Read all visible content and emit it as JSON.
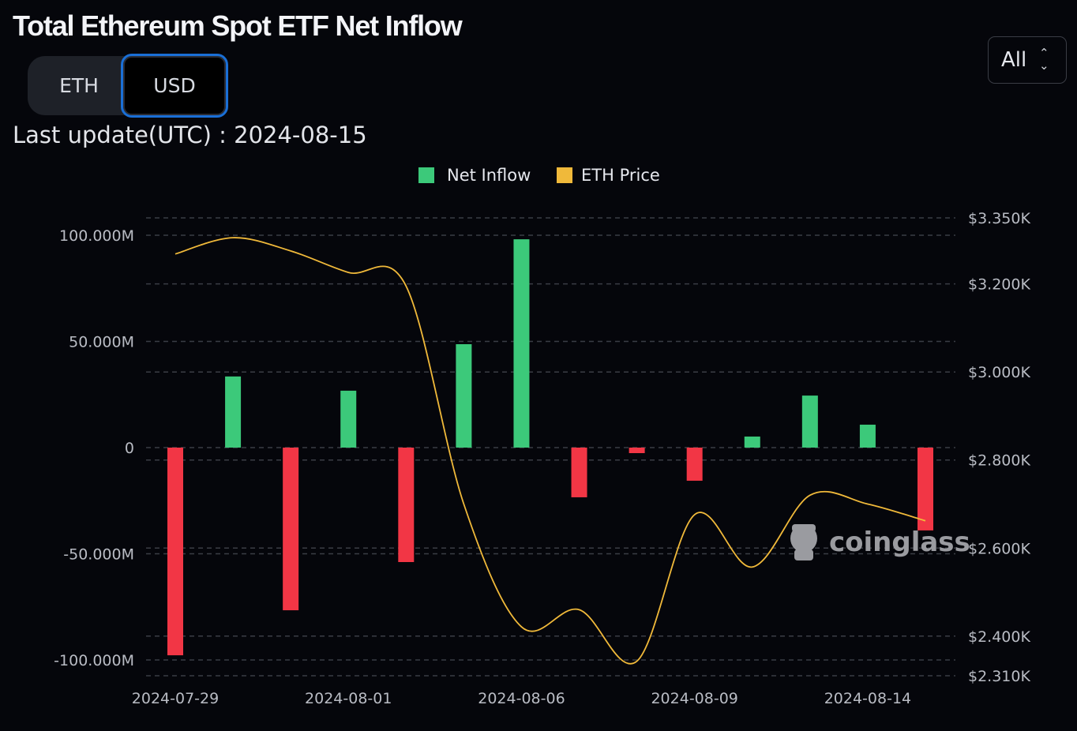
{
  "header": {
    "title": "Total Ethereum Spot ETF Net Inflow",
    "last_update": "Last update(UTC) : 2024-08-15"
  },
  "unit_toggle": {
    "options": [
      "ETH",
      "USD"
    ],
    "selected": "USD"
  },
  "range_select": {
    "value": "All",
    "icon": "chevron-up-down-icon"
  },
  "watermark": "coinglass",
  "chart_data": {
    "type": "bar+line",
    "title": "Total Ethereum Spot ETF Net Inflow",
    "legend": {
      "placement": "top-center",
      "entries": [
        "Net Inflow",
        "ETH Price"
      ]
    },
    "categories": [
      "2024-07-29",
      "2024-07-30",
      "2024-07-31",
      "2024-08-01",
      "2024-08-02",
      "2024-08-05",
      "2024-08-06",
      "2024-08-07",
      "2024-08-08",
      "2024-08-09",
      "2024-08-12",
      "2024-08-13",
      "2024-08-14",
      "2024-08-15"
    ],
    "x_tick_labels": [
      "2024-07-29",
      "2024-08-01",
      "2024-08-06",
      "2024-08-09",
      "2024-08-14"
    ],
    "series": [
      {
        "name": "Net Inflow",
        "type": "bar",
        "axis": "left",
        "unit": "USD",
        "values": [
          -97800000.0,
          33500000.0,
          -76600000.0,
          26800000.0,
          -53900000.0,
          48700000.0,
          98100000.0,
          -23400000.0,
          -2600000.0,
          -15600000.0,
          5200000.0,
          24500000.0,
          10800000.0,
          -39000000.0
        ]
      },
      {
        "name": "ETH Price",
        "type": "line",
        "axis": "right",
        "unit": "USD",
        "values": [
          3268,
          3305,
          3275,
          3226,
          3195,
          2700,
          2421,
          2460,
          2343,
          2676,
          2557,
          2720,
          2700,
          2662
        ]
      }
    ],
    "left_axis": {
      "ticks": [
        100000000.0,
        50000000.0,
        0,
        -50000000.0,
        -100000000.0
      ],
      "tick_labels": [
        "100.000M",
        "50.000M",
        "0",
        "-50.000M",
        "-100.000M"
      ],
      "range": [
        -108000000.0,
        100000000.0
      ]
    },
    "right_axis": {
      "ticks": [
        3350,
        3200,
        3000,
        2800,
        2600,
        2400,
        2310
      ],
      "tick_labels": [
        "$3.350K",
        "$3.200K",
        "$3.000K",
        "$2.800K",
        "$2.600K",
        "$2.400K",
        "$2.310K"
      ],
      "range": [
        2310,
        3350
      ]
    },
    "grid": true,
    "colors": {
      "positive": "#3cc97a",
      "negative": "#f23645",
      "price": "#f0b93a",
      "grid": "#3a3d45"
    }
  }
}
